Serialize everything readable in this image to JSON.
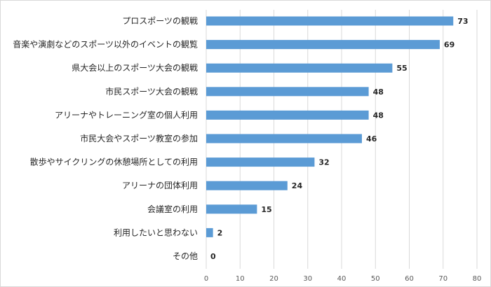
{
  "chart_data": {
    "type": "bar",
    "orientation": "horizontal",
    "categories": [
      "プロスポーツの観戦",
      "音楽や演劇などのスポーツ以外のイベントの観覧",
      "県大会以上のスポーツ大会の観戦",
      "市民スポーツ大会の観戦",
      "アリーナやトレーニング室の個人利用",
      "市民大会やスポーツ教室の参加",
      "散歩やサイクリングの休憩場所としての利用",
      "アリーナの団体利用",
      "会議室の利用",
      "利用したいと思わない",
      "その他"
    ],
    "values": [
      73,
      69,
      55,
      48,
      48,
      46,
      32,
      24,
      15,
      2,
      0
    ],
    "xlim": [
      0,
      80
    ],
    "xticks": [
      0,
      10,
      20,
      30,
      40,
      50,
      60,
      70,
      80
    ],
    "grid": true,
    "legend": "none",
    "data_labels": true,
    "bar_color": "#5b9bd5",
    "grid_color": "#d9d9d9"
  }
}
